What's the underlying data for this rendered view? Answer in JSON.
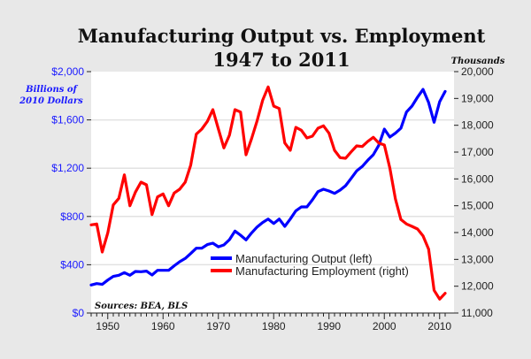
{
  "chart_data": {
    "type": "line",
    "title": "Manufacturing Output vs. Employment",
    "subtitle": "1947 to 2011",
    "left_axis": {
      "label": "Billions of 2010 Dollars",
      "label_lines": [
        "Billions of",
        "2010 Dollars"
      ],
      "range": [
        0,
        2000
      ],
      "ticks": [
        0,
        400,
        800,
        1200,
        1600,
        2000
      ],
      "tick_labels": [
        "$0",
        "$400",
        "$800",
        "$1,200",
        "$1,600",
        "$2,000"
      ],
      "color": "#1a1aff"
    },
    "right_axis": {
      "label": "Thousands",
      "range": [
        11000,
        20000
      ],
      "ticks": [
        11000,
        12000,
        13000,
        14000,
        15000,
        16000,
        17000,
        18000,
        19000,
        20000
      ],
      "tick_labels": [
        "11,000",
        "12,000",
        "13,000",
        "14,000",
        "15,000",
        "16,000",
        "17,000",
        "18,000",
        "19,000",
        "20,000"
      ]
    },
    "x_axis": {
      "range": [
        1947,
        2011
      ],
      "ticks": [
        1950,
        1960,
        1970,
        1980,
        1990,
        2000,
        2010
      ],
      "tick_labels": [
        "1950",
        "1960",
        "1970",
        "1980",
        "1990",
        "2000",
        "2010"
      ]
    },
    "grid": true,
    "legend_position": "bottom-center",
    "source": "Sources: BEA, BLS",
    "x": [
      1947,
      1948,
      1949,
      1950,
      1951,
      1952,
      1953,
      1954,
      1955,
      1956,
      1957,
      1958,
      1959,
      1960,
      1961,
      1962,
      1963,
      1964,
      1965,
      1966,
      1967,
      1968,
      1969,
      1970,
      1971,
      1972,
      1973,
      1974,
      1975,
      1976,
      1977,
      1978,
      1979,
      1980,
      1981,
      1982,
      1983,
      1984,
      1985,
      1986,
      1987,
      1988,
      1989,
      1990,
      1991,
      1992,
      1993,
      1994,
      1995,
      1996,
      1997,
      1998,
      1999,
      2000,
      2001,
      2002,
      2003,
      2004,
      2005,
      2006,
      2007,
      2008,
      2009,
      2010,
      2011
    ],
    "series": [
      {
        "name": "Manufacturing Output (left)",
        "axis": "left",
        "color": "#0000ff",
        "values": [
          232,
          244,
          237,
          273,
          303,
          313,
          335,
          313,
          344,
          342,
          347,
          315,
          354,
          354,
          354,
          391,
          425,
          452,
          493,
          537,
          537,
          567,
          579,
          549,
          564,
          608,
          679,
          645,
          606,
          664,
          713,
          750,
          779,
          742,
          779,
          718,
          779,
          847,
          879,
          879,
          938,
          1006,
          1026,
          1011,
          991,
          1018,
          1055,
          1116,
          1177,
          1214,
          1265,
          1311,
          1390,
          1524,
          1458,
          1490,
          1531,
          1665,
          1714,
          1788,
          1853,
          1744,
          1580,
          1751,
          1836
        ]
      },
      {
        "name": "Manufacturing Employment (right)",
        "axis": "right",
        "color": "#ff0000",
        "values": [
          14286,
          14319,
          13275,
          13989,
          15033,
          15275,
          16154,
          15000,
          15505,
          15879,
          15780,
          14670,
          15330,
          15440,
          15000,
          15473,
          15615,
          15879,
          16516,
          17670,
          17857,
          18143,
          18582,
          17857,
          17154,
          17637,
          18582,
          18495,
          16901,
          17505,
          18165,
          18934,
          19429,
          18714,
          18626,
          17341,
          17066,
          17923,
          17813,
          17527,
          17593,
          17890,
          17978,
          17703,
          17066,
          16791,
          16769,
          17011,
          17231,
          17209,
          17396,
          17549,
          17341,
          17264,
          16407,
          15253,
          14484,
          14319,
          14231,
          14132,
          13879,
          13385,
          11846,
          11516,
          11736
        ]
      }
    ]
  }
}
